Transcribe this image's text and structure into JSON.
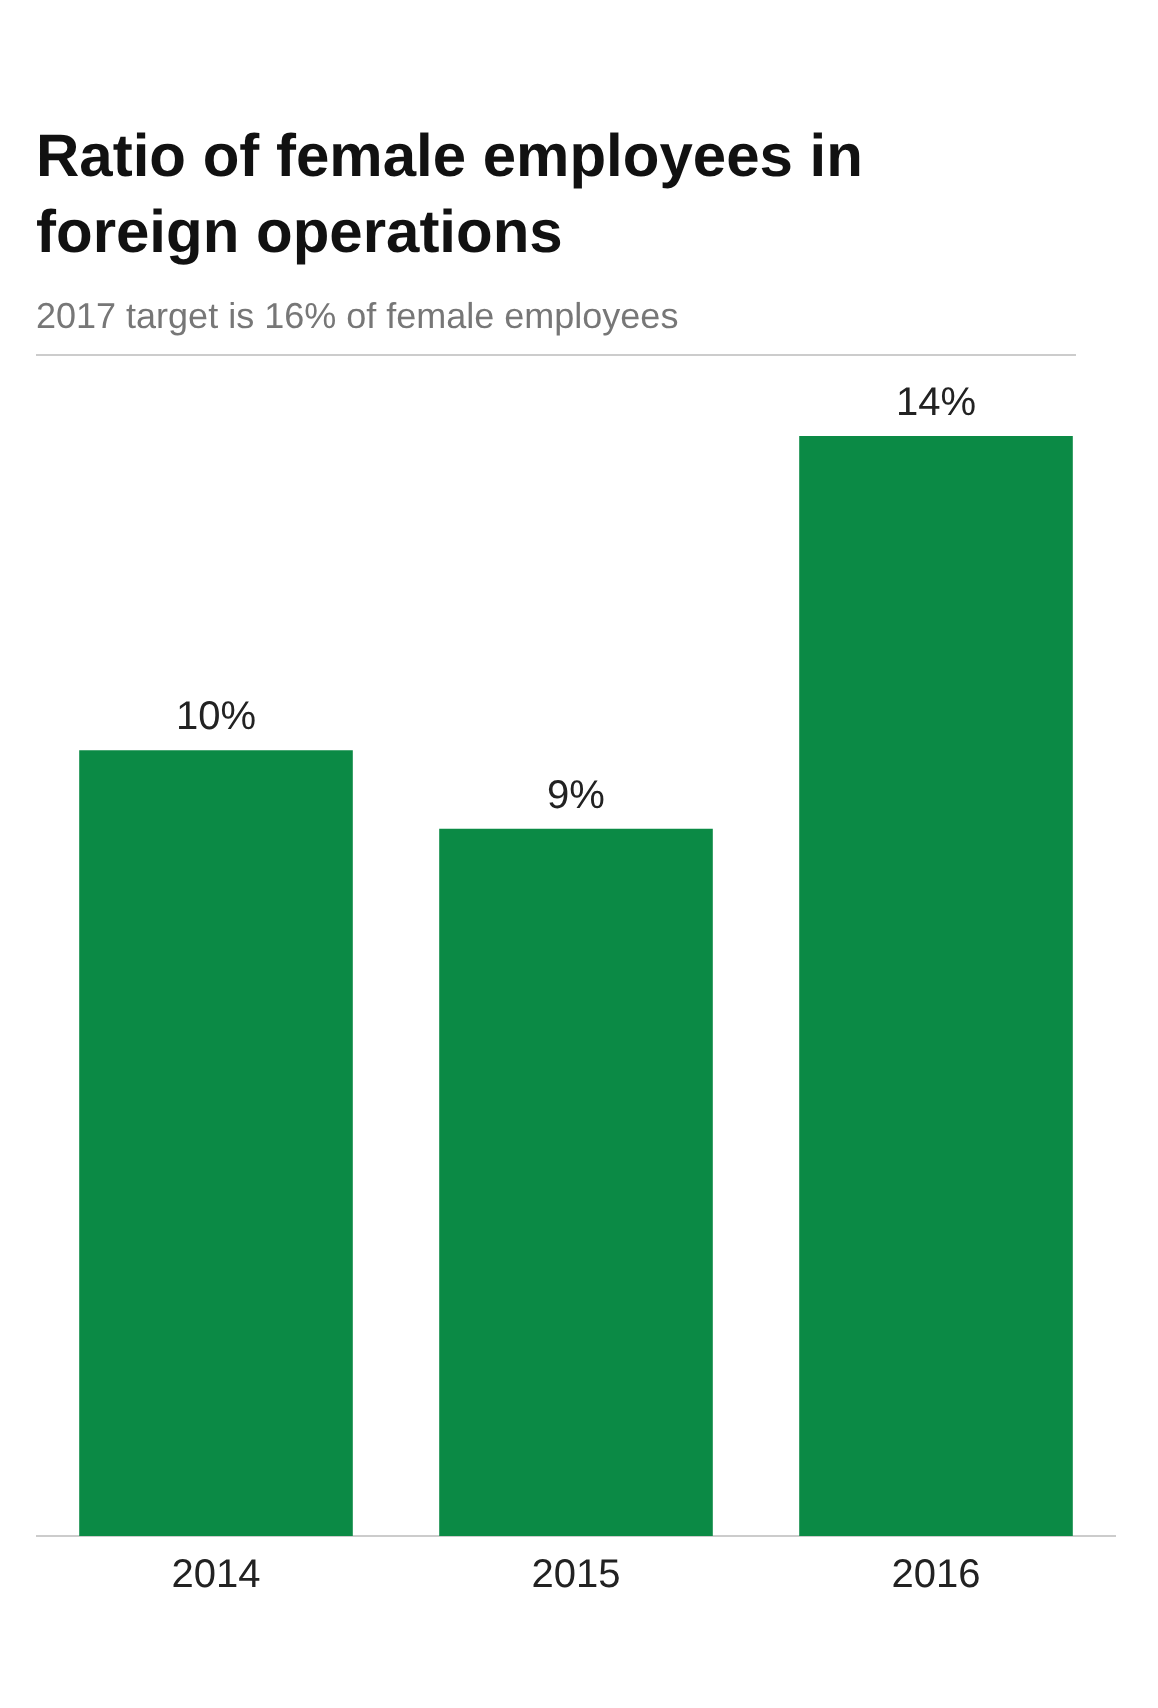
{
  "chart_data": {
    "type": "bar",
    "title": "Ratio of female employees in foreign operations",
    "subtitle": "2017 target is 16% of female employees",
    "categories": [
      "2014",
      "2015",
      "2016"
    ],
    "values": [
      10,
      9,
      14
    ],
    "value_labels": [
      "10%",
      "9%",
      "14%"
    ],
    "color": "#0b8a45",
    "grid": false,
    "legend": false
  }
}
